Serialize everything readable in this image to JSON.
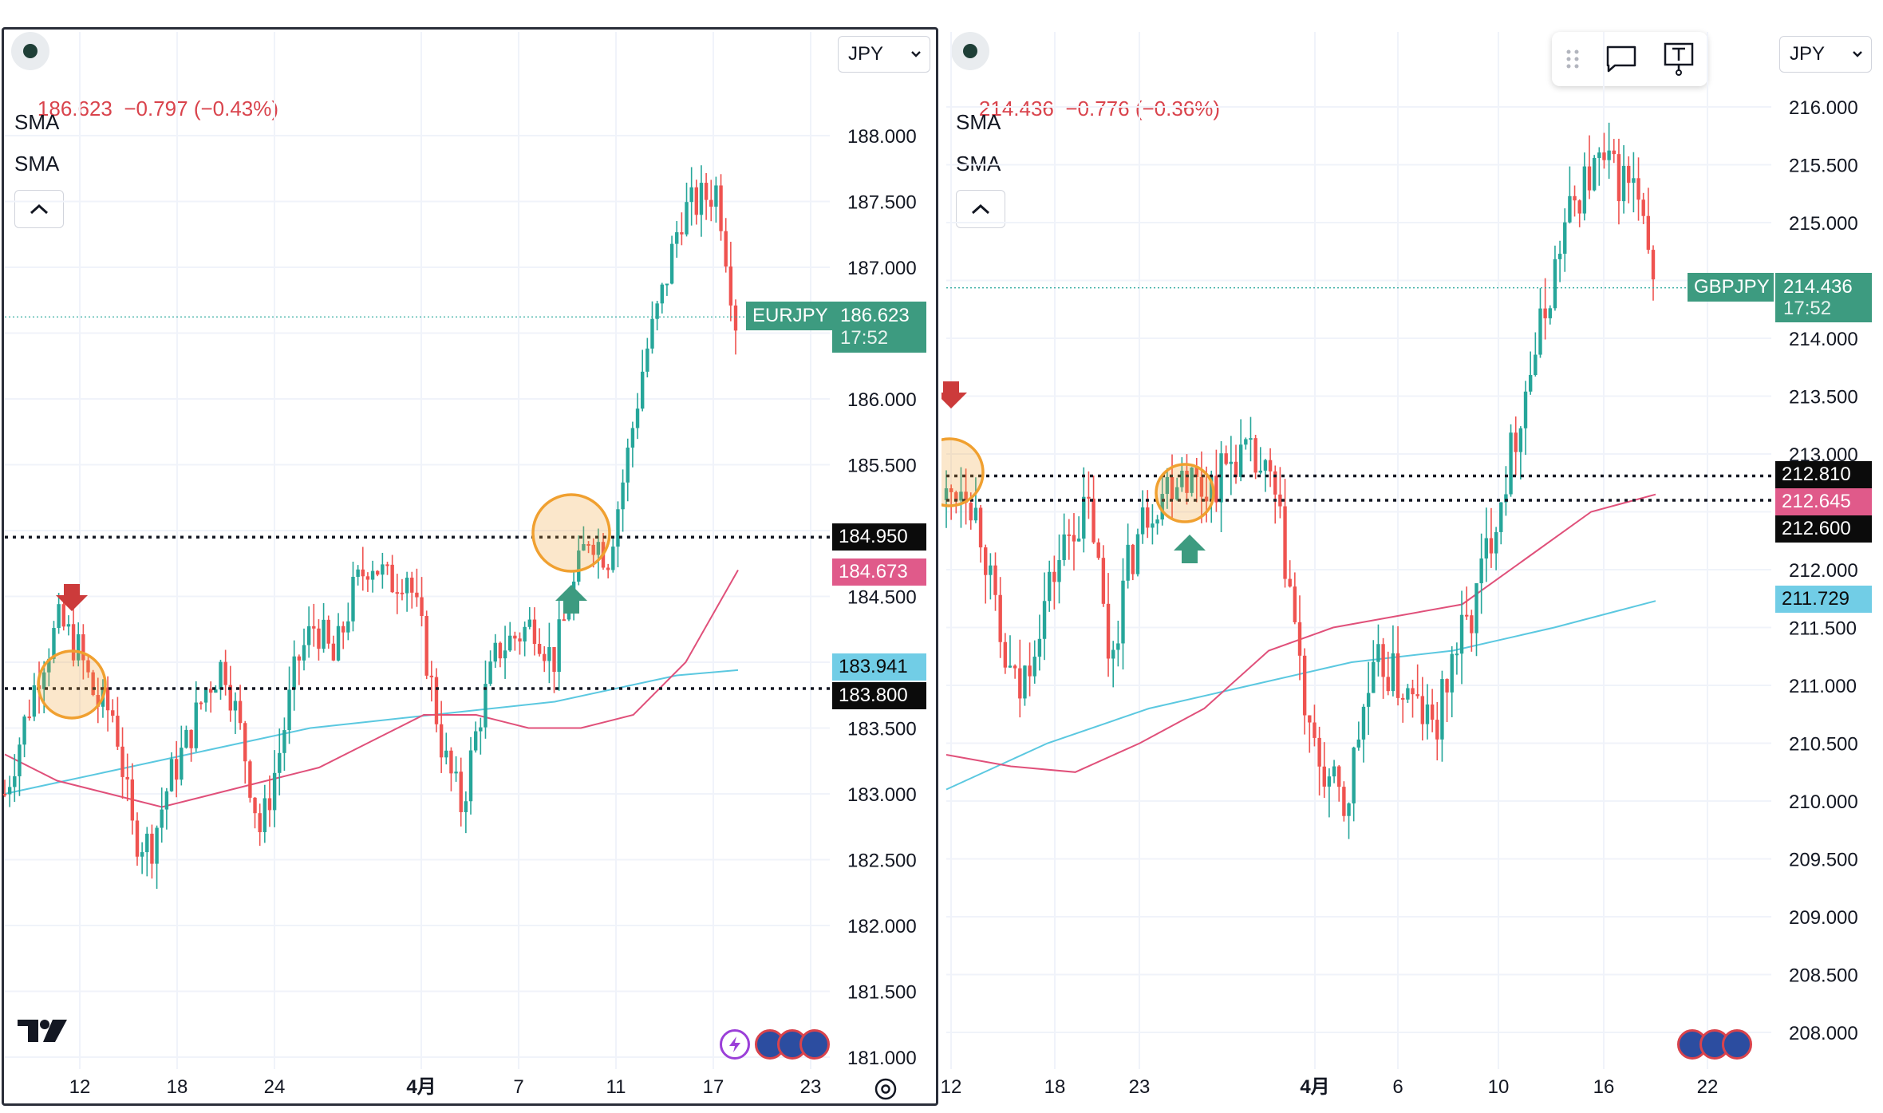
{
  "panels": [
    {
      "id": "left",
      "symbol": "EURJPY",
      "currency": "JPY",
      "price_text": "186.623",
      "change_text": "−0.797 (−0.43%)",
      "sma_labels": [
        "SMA",
        "SMA"
      ],
      "last_price_label": "186.623",
      "countdown": "17:52",
      "level_labels": [
        {
          "text": "184.950",
          "style": "black"
        },
        {
          "text": "184.673",
          "style": "pink"
        },
        {
          "text": "183.941",
          "style": "cyan"
        },
        {
          "text": "183.800",
          "style": "black"
        }
      ],
      "y_ticks": [
        "188.000",
        "187.500",
        "187.000",
        "186.500",
        "186.000",
        "185.500",
        "185.000",
        "184.500",
        "184.000",
        "183.500",
        "183.000",
        "182.500",
        "182.000",
        "181.500",
        "181.000"
      ],
      "x_ticks": [
        "12",
        "18",
        "24",
        "4月",
        "7",
        "11",
        "17",
        "23"
      ],
      "event_icons": [
        "lightning-icon",
        "eu-flag-icon",
        "eu-flag-icon",
        "eu-flag-icon"
      ]
    },
    {
      "id": "right",
      "symbol": "GBPJPY",
      "currency": "JPY",
      "price_text": "214.436",
      "change_text": "−0.776 (−0.36%)",
      "sma_labels": [
        "SMA",
        "SMA"
      ],
      "last_price_label": "214.436",
      "countdown": "17:52",
      "level_labels": [
        {
          "text": "212.810",
          "style": "black"
        },
        {
          "text": "212.645",
          "style": "pink"
        },
        {
          "text": "212.600",
          "style": "black"
        },
        {
          "text": "211.729",
          "style": "cyan"
        }
      ],
      "y_ticks": [
        "216.000",
        "215.500",
        "215.000",
        "214.500",
        "214.000",
        "213.500",
        "213.000",
        "212.500",
        "212.000",
        "211.500",
        "211.000",
        "210.500",
        "210.000",
        "209.500",
        "209.000",
        "208.500",
        "208.000"
      ],
      "x_ticks": [
        "12",
        "18",
        "23",
        "4月",
        "6",
        "10",
        "16",
        "22"
      ],
      "event_icons": [
        "uk-flag-icon",
        "uk-flag-icon",
        "uk-flag-icon"
      ]
    }
  ],
  "colors": {
    "up": "#26a69a",
    "down": "#ef5350",
    "sma_pink": "#e0507a",
    "sma_cyan": "#5bc8e0",
    "price_red": "#d9434c",
    "label_green": "#3d9b80",
    "label_pink": "#e05a8a",
    "label_cyan": "#71cde6",
    "label_black": "#0b0b0b",
    "marker_orange": "#f0a030",
    "arrow_red": "#cc3b3b",
    "arrow_green": "#3d9b80"
  },
  "chart_data": [
    {
      "type": "candlestick",
      "symbol": "EURJPY",
      "title": "",
      "x_ticks": [
        "12",
        "18",
        "24",
        "4月",
        "7",
        "11",
        "17",
        "23"
      ],
      "ylim": [
        181.0,
        188.2
      ],
      "close_path": [
        183.0,
        183.5,
        184.0,
        184.3,
        184.1,
        183.7,
        183.6,
        182.7,
        182.6,
        183.1,
        183.4,
        183.8,
        184.0,
        183.4,
        182.7,
        183.3,
        184.0,
        184.3,
        184.0,
        184.5,
        184.8,
        184.6,
        184.7,
        184.1,
        183.3,
        182.9,
        183.6,
        184.1,
        184.2,
        184.3,
        184.0,
        184.5,
        185.0,
        184.8,
        185.5,
        186.3,
        186.8,
        187.4,
        187.5,
        187.6,
        186.6
      ],
      "sma_pink": [
        183.3,
        183.1,
        183.0,
        182.9,
        183.0,
        183.1,
        183.2,
        183.4,
        183.6,
        183.6,
        183.5,
        183.5,
        183.6,
        184.0,
        184.7
      ],
      "sma_cyan": [
        183.0,
        183.1,
        183.2,
        183.3,
        183.4,
        183.5,
        183.55,
        183.6,
        183.65,
        183.7,
        183.8,
        183.9,
        183.94
      ],
      "levels": [
        184.95,
        183.8
      ]
    },
    {
      "type": "candlestick",
      "symbol": "GBPJPY",
      "title": "",
      "x_ticks": [
        "12",
        "18",
        "23",
        "4月",
        "6",
        "10",
        "16",
        "22"
      ],
      "ylim": [
        207.8,
        216.3
      ],
      "close_path": [
        212.6,
        212.8,
        212.3,
        211.3,
        210.9,
        211.5,
        212.0,
        212.4,
        212.5,
        211.2,
        212.0,
        212.5,
        212.7,
        212.9,
        212.7,
        212.8,
        213.0,
        212.9,
        212.7,
        211.8,
        210.5,
        210.2,
        209.9,
        210.8,
        211.2,
        211.0,
        210.8,
        210.6,
        211.3,
        211.6,
        212.3,
        212.9,
        213.6,
        214.2,
        214.9,
        215.3,
        215.5,
        215.4,
        215.3,
        214.4
      ],
      "sma_pink": [
        210.4,
        210.3,
        210.25,
        210.5,
        210.8,
        211.3,
        211.5,
        211.6,
        211.7,
        212.1,
        212.5,
        212.65
      ],
      "sma_cyan": [
        210.1,
        210.5,
        210.8,
        211.0,
        211.2,
        211.3,
        211.5,
        211.73
      ],
      "levels": [
        212.81,
        212.6
      ]
    }
  ]
}
